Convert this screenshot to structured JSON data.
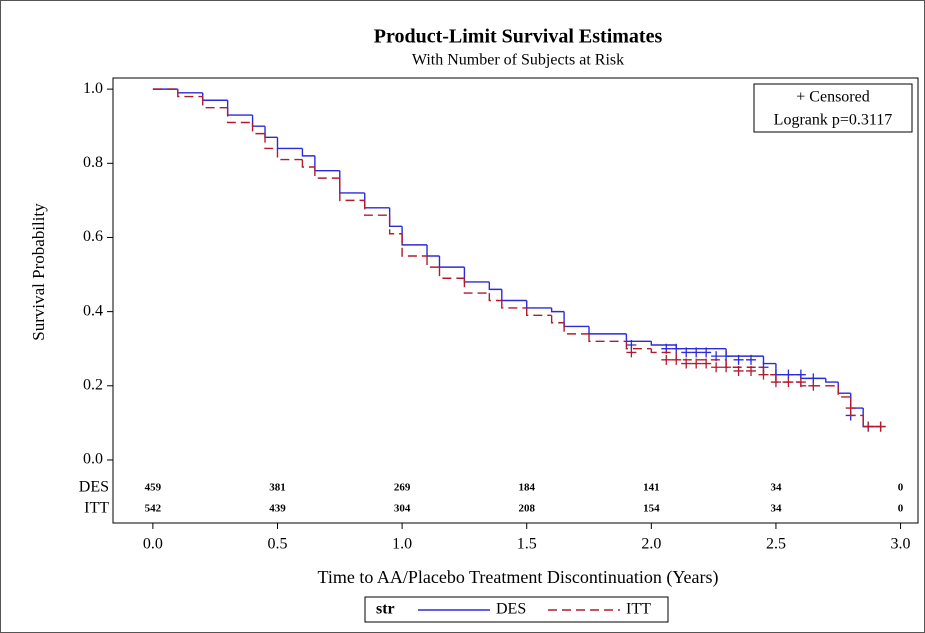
{
  "chart_data": {
    "type": "line",
    "title": "Product-Limit Survival Estimates",
    "subtitle": "With Number of Subjects at Risk",
    "xlabel": "Time to AA/Placebo Treatment Discontinuation (Years)",
    "ylabel": "Survival Probability",
    "xlim": [
      -0.16,
      3.07
    ],
    "ylim": [
      -0.17,
      1.03
    ],
    "xticks": [
      {
        "value": 0,
        "label": "0.0"
      },
      {
        "value": 0.5,
        "label": "0.5"
      },
      {
        "value": 1,
        "label": "1.0"
      },
      {
        "value": 1.5,
        "label": "1.5"
      },
      {
        "value": 2,
        "label": "2.0"
      },
      {
        "value": 2.5,
        "label": "2.5"
      },
      {
        "value": 3,
        "label": "3.0"
      }
    ],
    "yticks": [
      {
        "value": 0,
        "label": "0.0"
      },
      {
        "value": 0.2,
        "label": "0.2"
      },
      {
        "value": 0.4,
        "label": "0.4"
      },
      {
        "value": 0.6,
        "label": "0.6"
      },
      {
        "value": 0.8,
        "label": "0.8"
      },
      {
        "value": 1,
        "label": "1.0"
      }
    ],
    "legend_title": "str",
    "annotations": [
      "+ Censored",
      "Logrank p=0.3117"
    ],
    "series": [
      {
        "name": "DES",
        "color": "#2b2bd9",
        "dash": "none",
        "x": [
          0,
          0.1,
          0.2,
          0.3,
          0.4,
          0.45,
          0.5,
          0.6,
          0.65,
          0.75,
          0.85,
          0.95,
          1.0,
          1.1,
          1.15,
          1.25,
          1.35,
          1.4,
          1.5,
          1.6,
          1.65,
          1.75,
          1.9,
          2.0,
          2.1,
          2.3,
          2.45,
          2.5,
          2.6,
          2.7,
          2.75,
          2.8,
          2.85,
          2.92
        ],
        "values": [
          1.0,
          0.99,
          0.97,
          0.93,
          0.9,
          0.87,
          0.84,
          0.82,
          0.78,
          0.72,
          0.68,
          0.63,
          0.58,
          0.55,
          0.52,
          0.48,
          0.46,
          0.43,
          0.41,
          0.4,
          0.36,
          0.34,
          0.32,
          0.31,
          0.3,
          0.28,
          0.26,
          0.23,
          0.22,
          0.21,
          0.18,
          0.14,
          0.09,
          0.09
        ],
        "censored_x": [
          1.92,
          2.06,
          2.1,
          2.14,
          2.18,
          2.22,
          2.26,
          2.3,
          2.35,
          2.4,
          2.45,
          2.5,
          2.55,
          2.6,
          2.65,
          2.8,
          2.87,
          2.92
        ],
        "censored_values": [
          0.31,
          0.3,
          0.3,
          0.29,
          0.29,
          0.29,
          0.28,
          0.28,
          0.27,
          0.27,
          0.25,
          0.23,
          0.23,
          0.23,
          0.22,
          0.12,
          0.09,
          0.09
        ],
        "at_risk": [
          459,
          381,
          269,
          184,
          141,
          34,
          0
        ]
      },
      {
        "name": "ITT",
        "color": "#b01c2e",
        "dash": "9 5",
        "x": [
          0,
          0.1,
          0.2,
          0.3,
          0.4,
          0.45,
          0.5,
          0.6,
          0.65,
          0.75,
          0.85,
          0.95,
          1.0,
          1.1,
          1.15,
          1.25,
          1.35,
          1.4,
          1.5,
          1.6,
          1.65,
          1.75,
          1.9,
          2.0,
          2.1,
          2.3,
          2.45,
          2.5,
          2.6,
          2.7,
          2.75,
          2.8,
          2.85,
          2.92
        ],
        "values": [
          1.0,
          0.98,
          0.95,
          0.91,
          0.88,
          0.84,
          0.81,
          0.79,
          0.76,
          0.7,
          0.66,
          0.61,
          0.55,
          0.52,
          0.49,
          0.45,
          0.43,
          0.41,
          0.39,
          0.37,
          0.34,
          0.32,
          0.3,
          0.29,
          0.27,
          0.25,
          0.23,
          0.21,
          0.2,
          0.2,
          0.17,
          0.12,
          0.09,
          0.09
        ],
        "censored_x": [
          1.92,
          2.06,
          2.1,
          2.14,
          2.18,
          2.22,
          2.26,
          2.3,
          2.35,
          2.4,
          2.45,
          2.5,
          2.55,
          2.6,
          2.65,
          2.8,
          2.87,
          2.92
        ],
        "censored_values": [
          0.29,
          0.27,
          0.27,
          0.26,
          0.26,
          0.26,
          0.25,
          0.25,
          0.24,
          0.24,
          0.23,
          0.21,
          0.21,
          0.21,
          0.2,
          0.14,
          0.09,
          0.09
        ],
        "at_risk": [
          542,
          439,
          304,
          208,
          154,
          34,
          0
        ]
      }
    ]
  }
}
